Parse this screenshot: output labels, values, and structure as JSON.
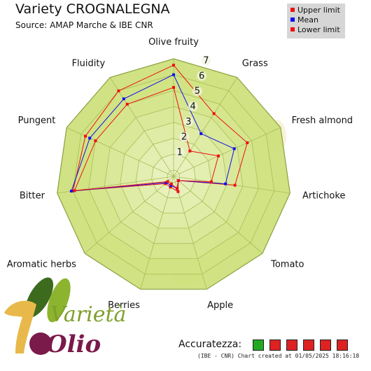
{
  "title": "Variety CROGNALEGNA",
  "subtitle": "Source: AMAP Marche & IBE CNR",
  "legend": {
    "items": [
      {
        "label": "Upper limit",
        "color": "#ee1111"
      },
      {
        "label": "Mean",
        "color": "#1111ee"
      },
      {
        "label": "Lower limit",
        "color": "#ee1111"
      }
    ]
  },
  "chart_data": {
    "type": "radar",
    "categories": [
      "Olive fruity",
      "Grass",
      "Fresh almond",
      "Artichoke",
      "Tomato",
      "Apple",
      "Berries",
      "Aromatic herbs",
      "Bitter",
      "Pungent",
      "Fluidity"
    ],
    "rlim": [
      0,
      7
    ],
    "ticks": [
      "1",
      "2",
      "3",
      "4",
      "5",
      "6",
      "7"
    ],
    "series": [
      {
        "name": "Upper limit",
        "color": "#ee1111",
        "values": [
          6.6,
          4.3,
          4.7,
          3.5,
          0,
          0.6,
          0.3,
          0.3,
          6.0,
          5.7,
          6.0
        ]
      },
      {
        "name": "Mean",
        "color": "#1111ee",
        "values": [
          6.0,
          2.8,
          3.8,
          2.9,
          0,
          0.4,
          0.2,
          0.2,
          6.1,
          5.4,
          5.4
        ]
      },
      {
        "name": "Lower limit",
        "color": "#ee1111",
        "values": [
          5.2,
          1.5,
          2.7,
          2.0,
          0,
          0.4,
          0.1,
          0.1,
          5.9,
          5.0,
          5.0
        ]
      }
    ]
  },
  "accuracy": {
    "label": "Accuratezza:",
    "boxes": [
      "#22aa22",
      "#dd2222",
      "#dd2222",
      "#dd2222",
      "#dd2222",
      "#dd2222"
    ]
  },
  "footer": "(IBE - CNR) Chart created at 01/05/2025 18:16:18",
  "logo": {
    "word_top": "Varietà",
    "word_bottom": "Olio"
  },
  "colors": {
    "panel_fill": "#d4e586",
    "grid_stroke": "#a8bd58",
    "outer_stroke": "#8aa040"
  }
}
